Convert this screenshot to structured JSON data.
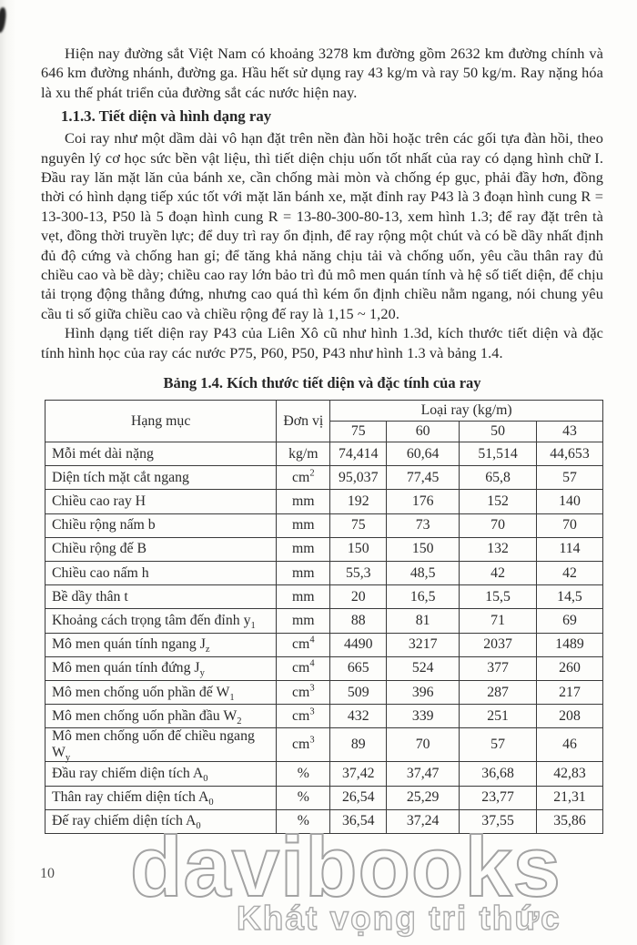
{
  "page": {
    "number": "10",
    "watermark_line1": "davibooks",
    "watermark_line2": "Khát vọng tri thức"
  },
  "heading": {
    "section": "1.1.3. Tiết diện và hình dạng ray"
  },
  "paragraphs": {
    "intro": "Hiện nay đường sắt Việt Nam có khoảng 3278 km đường gồm 2632 km đường chính và 646 km đường nhánh, đường ga. Hầu hết sử dụng ray 43 kg/m và ray 50 kg/m. Ray nặng hóa là xu thế phát triển của đường sắt các nước hiện nay.",
    "body1": "Coi ray như một dầm dài vô hạn đặt trên nền đàn hồi hoặc trên các gối tựa đàn hồi, theo nguyên lý cơ học sức bền vật liệu, thì tiết diện chịu uốn tốt nhất của ray có dạng hình chữ I. Đầu ray lăn mặt lăn của bánh xe, cần chống mài mòn và chống ép gục, phải đầy hơn, đồng thời có hình dạng tiếp xúc tốt với mặt lăn bánh xe, mặt đỉnh ray P43 là 3 đoạn hình cung R = 13-300-13, P50 là 5 đoạn hình cung R = 13-80-300-80-13, xem hình 1.3; để ray đặt trên tà vẹt, đồng thời truyền lực; để duy trì ray ổn định, để ray rộng một chút và có bề dầy nhất định đủ độ cứng và chống han gỉ; để tăng khả năng chịu tải và chống uốn, yêu cầu thân ray đủ chiều cao và bề dày; chiều cao ray lớn bảo trì đủ mô men quán tính và hệ số tiết diện, để chịu tải trọng động thẳng đứng, nhưng cao quá thì kém ổn định chiều nằm ngang, nói chung yêu cầu ti số giữa chiều cao và chiều rộng đế ray là 1,15 ~ 1,20.",
    "body2": "Hình dạng tiết diện ray P43 của Liên Xô cũ như hình 1.3d, kích thước tiết diện và đặc tính hình học của ray các nước P75, P60, P50, P43 như hình 1.3 và bảng 1.4."
  },
  "table": {
    "caption": "Bảng 1.4. Kích thước tiết diện và đặc tính của ray",
    "col_item": "Hạng mục",
    "col_unit": "Đơn vị",
    "col_group": "Loại ray (kg/m)",
    "rail_types": [
      "75",
      "60",
      "50",
      "43"
    ],
    "rows": [
      {
        "label": "Mỗi mét dài nặng",
        "label_sub": "",
        "unit": "kg/m",
        "unit_sup": "",
        "values": [
          "74,414",
          "60,64",
          "51,514",
          "44,653"
        ]
      },
      {
        "label": "Diện tích mặt cắt ngang",
        "label_sub": "",
        "unit": "cm",
        "unit_sup": "2",
        "values": [
          "95,037",
          "77,45",
          "65,8",
          "57"
        ]
      },
      {
        "label": "Chiều cao ray H",
        "label_sub": "",
        "unit": "mm",
        "unit_sup": "",
        "values": [
          "192",
          "176",
          "152",
          "140"
        ]
      },
      {
        "label": "Chiều rộng nấm b",
        "label_sub": "",
        "unit": "mm",
        "unit_sup": "",
        "values": [
          "75",
          "73",
          "70",
          "70"
        ]
      },
      {
        "label": "Chiều rộng đế B",
        "label_sub": "",
        "unit": "mm",
        "unit_sup": "",
        "values": [
          "150",
          "150",
          "132",
          "114"
        ]
      },
      {
        "label": "Chiều cao nấm h",
        "label_sub": "",
        "unit": "mm",
        "unit_sup": "",
        "values": [
          "55,3",
          "48,5",
          "42",
          "42"
        ]
      },
      {
        "label": "Bề dầy thân t",
        "label_sub": "",
        "unit": "mm",
        "unit_sup": "",
        "values": [
          "20",
          "16,5",
          "15,5",
          "14,5"
        ]
      },
      {
        "label": "Khoảng cách trọng tâm đến đỉnh y",
        "label_sub": "1",
        "unit": "mm",
        "unit_sup": "",
        "values": [
          "88",
          "81",
          "71",
          "69"
        ]
      },
      {
        "label": "Mô men quán tính ngang J",
        "label_sub": "z",
        "unit": "cm",
        "unit_sup": "4",
        "values": [
          "4490",
          "3217",
          "2037",
          "1489"
        ]
      },
      {
        "label": "Mô men quán tính đứng J",
        "label_sub": "y",
        "unit": "cm",
        "unit_sup": "4",
        "values": [
          "665",
          "524",
          "377",
          "260"
        ]
      },
      {
        "label": "Mô men chống uốn phần đế W",
        "label_sub": "1",
        "unit": "cm",
        "unit_sup": "3",
        "values": [
          "509",
          "396",
          "287",
          "217"
        ]
      },
      {
        "label": "Mô men chống uốn phần đầu W",
        "label_sub": "2",
        "unit": "cm",
        "unit_sup": "3",
        "values": [
          "432",
          "339",
          "251",
          "208"
        ]
      },
      {
        "label": "Mô men chống uốn đế chiều ngang W",
        "label_sub": "y",
        "unit": "cm",
        "unit_sup": "3",
        "values": [
          "89",
          "70",
          "57",
          "46"
        ]
      },
      {
        "label": "Đầu ray chiếm diện tích A",
        "label_sub": "0",
        "unit": "%",
        "unit_sup": "",
        "values": [
          "37,42",
          "37,47",
          "36,68",
          "42,83"
        ]
      },
      {
        "label": "Thân ray chiếm diện tích A",
        "label_sub": "0",
        "unit": "%",
        "unit_sup": "",
        "values": [
          "26,54",
          "25,29",
          "23,77",
          "21,31"
        ]
      },
      {
        "label": "Đế ray chiếm diện tích A",
        "label_sub": "0",
        "unit": "%",
        "unit_sup": "",
        "values": [
          "36,54",
          "37,24",
          "37,55",
          "35,86"
        ]
      }
    ]
  }
}
